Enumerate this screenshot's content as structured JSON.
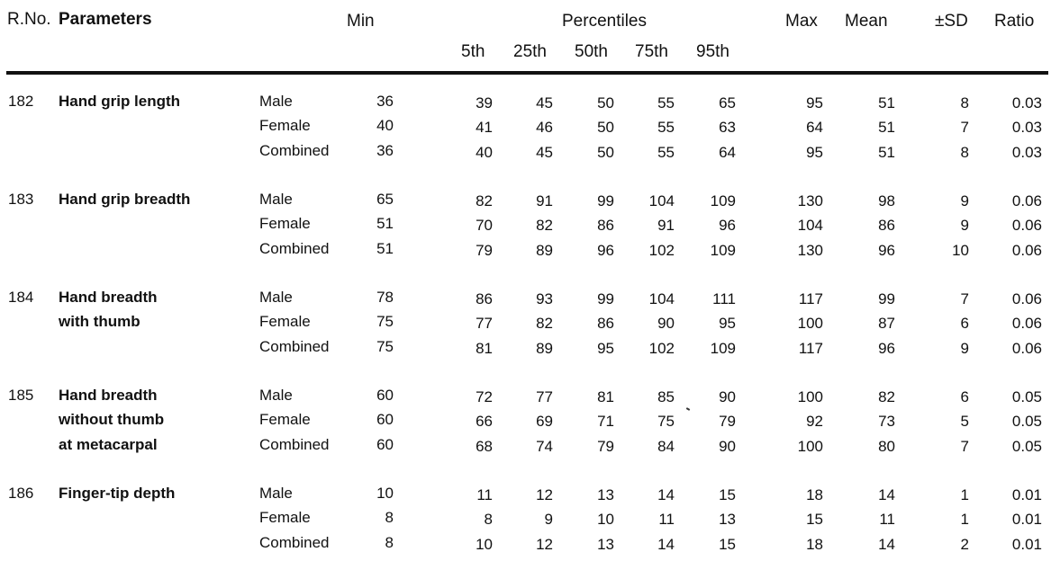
{
  "headers": {
    "rno": "R.No.",
    "parameters": "Parameters",
    "min": "Min",
    "percentiles": "Percentiles",
    "p5": "5th",
    "p25": "25th",
    "p50": "50th",
    "p75": "75th",
    "p95": "95th",
    "max": "Max",
    "mean": "Mean",
    "sd": "±SD",
    "ratio": "Ratio"
  },
  "rows": [
    {
      "rno": "182",
      "param_lines": [
        "Hand grip length"
      ],
      "groups": [
        {
          "gender": "Male",
          "min": "36",
          "p5": "39",
          "p25": "45",
          "p50": "50",
          "p75": "55",
          "p95": "65",
          "max": "95",
          "mean": "51",
          "sd": "8",
          "ratio": "0.03"
        },
        {
          "gender": "Female",
          "min": "40",
          "p5": "41",
          "p25": "46",
          "p50": "50",
          "p75": "55",
          "p95": "63",
          "max": "64",
          "mean": "51",
          "sd": "7",
          "ratio": "0.03"
        },
        {
          "gender": "Combined",
          "min": "36",
          "p5": "40",
          "p25": "45",
          "p50": "50",
          "p75": "55",
          "p95": "64",
          "max": "95",
          "mean": "51",
          "sd": "8",
          "ratio": "0.03"
        }
      ]
    },
    {
      "rno": "183",
      "param_lines": [
        "Hand grip breadth"
      ],
      "groups": [
        {
          "gender": "Male",
          "min": "65",
          "p5": "82",
          "p25": "91",
          "p50": "99",
          "p75": "104",
          "p95": "109",
          "max": "130",
          "mean": "98",
          "sd": "9",
          "ratio": "0.06"
        },
        {
          "gender": "Female",
          "min": "51",
          "p5": "70",
          "p25": "82",
          "p50": "86",
          "p75": "91",
          "p95": "96",
          "max": "104",
          "mean": "86",
          "sd": "9",
          "ratio": "0.06"
        },
        {
          "gender": "Combined",
          "min": "51",
          "p5": "79",
          "p25": "89",
          "p50": "96",
          "p75": "102",
          "p95": "109",
          "max": "130",
          "mean": "96",
          "sd": "10",
          "ratio": "0.06"
        }
      ]
    },
    {
      "rno": "184",
      "param_lines": [
        "Hand breadth",
        "with thumb"
      ],
      "groups": [
        {
          "gender": "Male",
          "min": "78",
          "p5": "86",
          "p25": "93",
          "p50": "99",
          "p75": "104",
          "p95": "111",
          "max": "117",
          "mean": "99",
          "sd": "7",
          "ratio": "0.06"
        },
        {
          "gender": "Female",
          "min": "75",
          "p5": "77",
          "p25": "82",
          "p50": "86",
          "p75": "90",
          "p95": "95",
          "max": "100",
          "mean": "87",
          "sd": "6",
          "ratio": "0.06"
        },
        {
          "gender": "Combined",
          "min": "75",
          "p5": "81",
          "p25": "89",
          "p50": "95",
          "p75": "102",
          "p95": "109",
          "max": "117",
          "mean": "96",
          "sd": "9",
          "ratio": "0.06"
        }
      ]
    },
    {
      "rno": "185",
      "param_lines": [
        "Hand breadth",
        "without thumb",
        "at metacarpal"
      ],
      "groups": [
        {
          "gender": "Male",
          "min": "60",
          "p5": "72",
          "p25": "77",
          "p50": "81",
          "p75": "85",
          "p95": "90",
          "max": "100",
          "mean": "82",
          "sd": "6",
          "ratio": "0.05"
        },
        {
          "gender": "Female",
          "min": "60",
          "p5": "66",
          "p25": "69",
          "p50": "71",
          "p75": "75",
          "p95": "79",
          "max": "92",
          "mean": "73",
          "sd": "5",
          "ratio": "0.05"
        },
        {
          "gender": "Combined",
          "min": "60",
          "p5": "68",
          "p25": "74",
          "p50": "79",
          "p75": "84",
          "p95": "90",
          "max": "100",
          "mean": "80",
          "sd": "7",
          "ratio": "0.05"
        }
      ]
    },
    {
      "rno": "186",
      "param_lines": [
        "Finger-tip depth"
      ],
      "groups": [
        {
          "gender": "Male",
          "min": "10",
          "p5": "11",
          "p25": "12",
          "p50": "13",
          "p75": "14",
          "p95": "15",
          "max": "18",
          "mean": "14",
          "sd": "1",
          "ratio": "0.01"
        },
        {
          "gender": "Female",
          "min": "8",
          "p5": "8",
          "p25": "9",
          "p50": "10",
          "p75": "11",
          "p95": "13",
          "max": "15",
          "mean": "11",
          "sd": "1",
          "ratio": "0.01"
        },
        {
          "gender": "Combined",
          "min": "8",
          "p5": "10",
          "p25": "12",
          "p50": "13",
          "p75": "14",
          "p95": "15",
          "max": "18",
          "mean": "14",
          "sd": "2",
          "ratio": "0.01"
        }
      ]
    }
  ]
}
